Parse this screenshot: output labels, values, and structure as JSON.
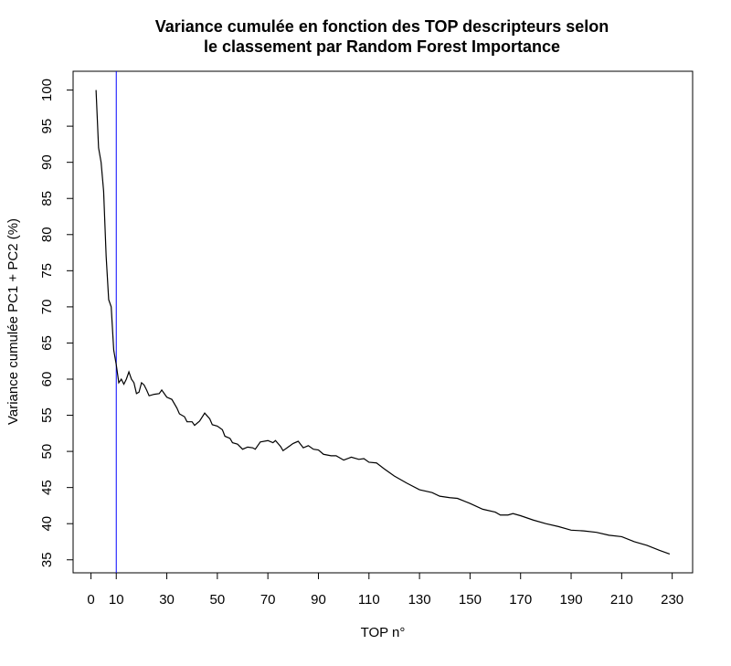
{
  "chart_data": {
    "type": "line",
    "title": [
      "Variance cumulée en fonction des TOP descripteurs selon",
      "le classement par Random Forest Importance"
    ],
    "x_label": "TOP n°",
    "y_label": "Variance cumulée PC1 + PC2 (%)",
    "x": [
      2,
      3,
      4,
      5,
      6,
      7,
      8,
      9,
      10,
      11,
      12,
      13,
      14,
      15,
      16,
      17,
      18,
      19,
      20,
      21,
      22,
      23,
      25,
      27,
      28,
      30,
      32,
      34,
      35,
      37,
      38,
      40,
      41,
      43,
      45,
      47,
      48,
      50,
      52,
      53,
      55,
      56,
      58,
      60,
      62,
      64,
      65,
      67,
      70,
      72,
      73,
      75,
      76,
      78,
      80,
      82,
      84,
      86,
      88,
      90,
      92,
      95,
      97,
      100,
      103,
      106,
      108,
      110,
      113,
      116,
      120,
      125,
      130,
      135,
      138,
      142,
      145,
      150,
      155,
      160,
      162,
      165,
      167,
      170,
      175,
      180,
      185,
      190,
      195,
      200,
      205,
      210,
      215,
      220,
      225,
      229
    ],
    "series": [
      {
        "name": "Variance cumulée",
        "color": "#000000",
        "values": [
          100,
          92,
          90,
          86,
          77,
          71,
          70,
          64,
          62,
          59.5,
          60,
          59.3,
          60,
          61,
          60,
          59.5,
          58,
          58.2,
          59.5,
          59.2,
          58.5,
          57.7,
          57.9,
          58,
          58.5,
          57.5,
          57.2,
          56,
          55.2,
          54.8,
          54.1,
          54.1,
          53.6,
          54.2,
          55.3,
          54.5,
          53.7,
          53.5,
          53,
          52.1,
          51.8,
          51.2,
          51,
          50.3,
          50.6,
          50.5,
          50.3,
          51.3,
          51.5,
          51.2,
          51.5,
          50.7,
          50.1,
          50.6,
          51.1,
          51.4,
          50.5,
          50.8,
          50.3,
          50.2,
          49.6,
          49.4,
          49.4,
          48.8,
          49.2,
          48.9,
          49,
          48.5,
          48.4,
          47.6,
          46.6,
          45.6,
          44.7,
          44.3,
          43.8,
          43.6,
          43.5,
          42.8,
          42,
          41.6,
          41.2,
          41.2,
          41.4,
          41.1,
          40.5,
          40,
          39.6,
          39.1,
          39,
          38.8,
          38.4,
          38.2,
          37.5,
          37,
          36.3,
          35.8
        ]
      }
    ],
    "vline": {
      "value": 10,
      "color": "#0000ff"
    },
    "xlim": [
      -7.08,
      238.08
    ],
    "ylim": [
      33.2,
      102.6
    ],
    "xticks": [
      0,
      10,
      30,
      50,
      70,
      90,
      110,
      130,
      150,
      170,
      190,
      210,
      230
    ],
    "yticks": [
      35,
      40,
      45,
      50,
      55,
      60,
      65,
      70,
      75,
      80,
      85,
      90,
      95,
      100
    ]
  }
}
